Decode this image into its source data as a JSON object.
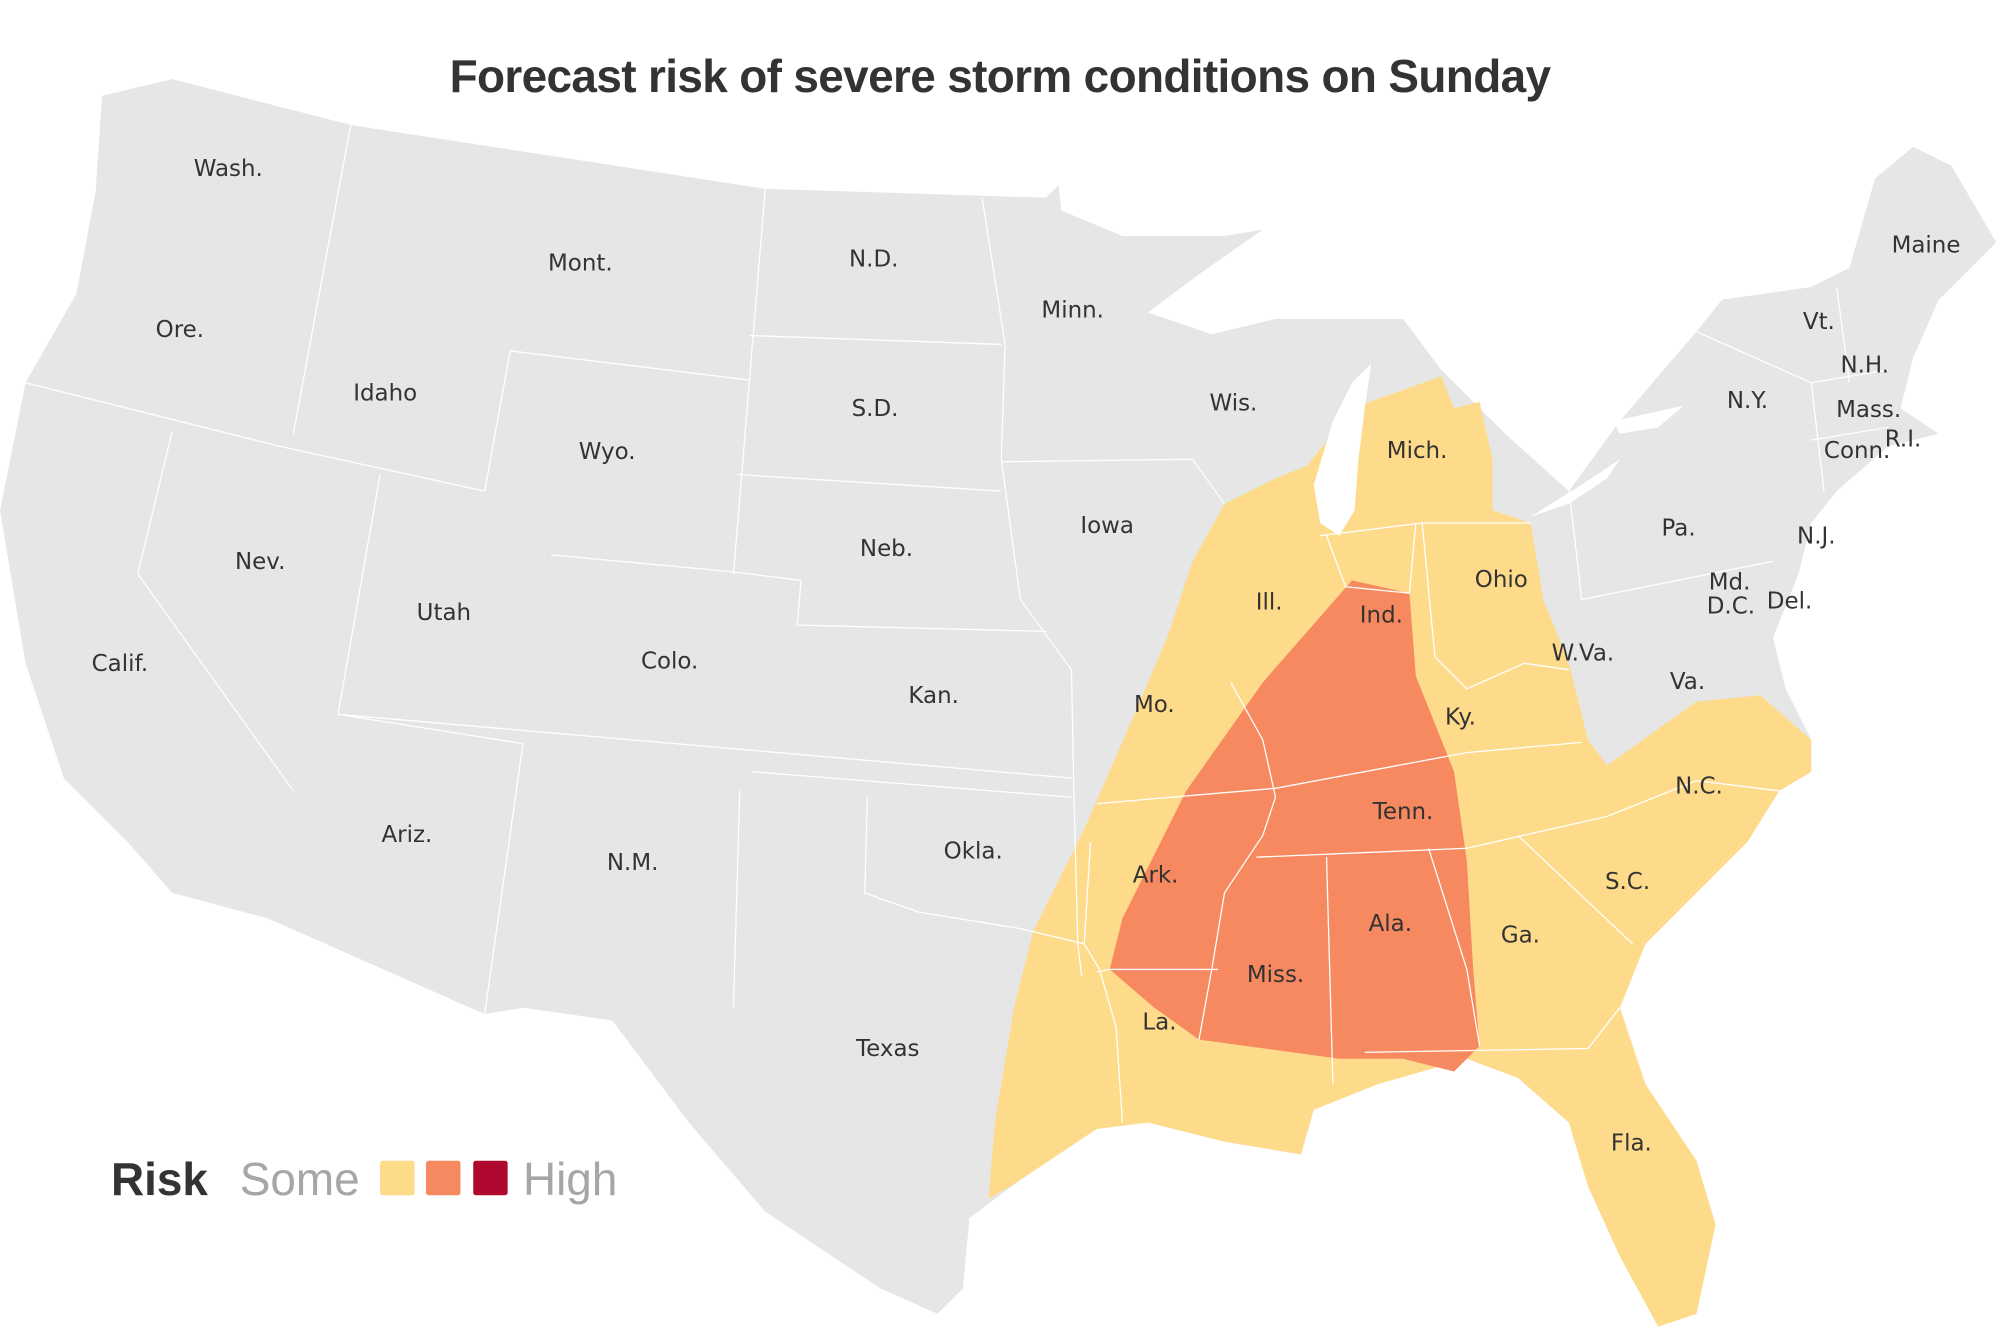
{
  "title": "Forecast risk of severe storm conditions on Sunday",
  "colors": {
    "land": "#e6e6e6",
    "some": "#fedb8b",
    "moderate": "#f6895f",
    "high": "#b00930",
    "border": "#ffffff"
  },
  "states": [
    "Wash.",
    "Ore.",
    "Calif.",
    "Idaho",
    "Nev.",
    "Mont.",
    "Wyo.",
    "Utah",
    "Ariz.",
    "Colo.",
    "N.M.",
    "N.D.",
    "S.D.",
    "Neb.",
    "Kan.",
    "Okla.",
    "Texas",
    "Minn.",
    "Iowa",
    "Mo.",
    "Ark.",
    "La.",
    "Wis.",
    "Ill.",
    "Mich.",
    "Ind.",
    "Ohio",
    "Ky.",
    "Tenn.",
    "Miss.",
    "Ala.",
    "Ga.",
    "Fla.",
    "S.C.",
    "N.C.",
    "Va.",
    "W.Va.",
    "Pa.",
    "N.Y.",
    "Md.",
    "D.C.",
    "Del.",
    "N.J.",
    "Conn.",
    "R.I.",
    "Mass.",
    "Vt.",
    "N.H.",
    "Maine"
  ],
  "legend": {
    "label": "Risk",
    "low": "Some",
    "high": "High",
    "levels": [
      "some",
      "moderate",
      "high"
    ]
  }
}
